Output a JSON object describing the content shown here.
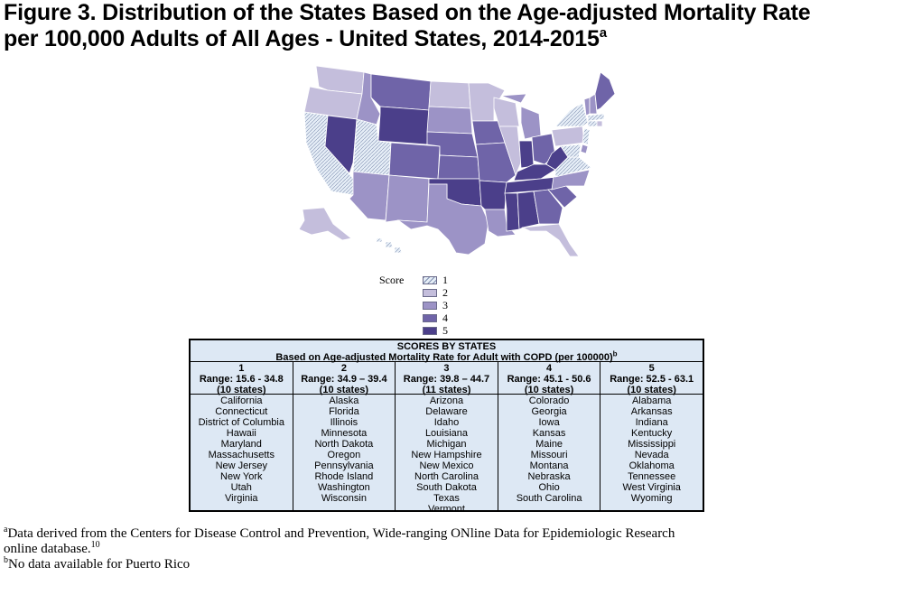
{
  "title": {
    "line1": "Figure 3.  Distribution of the States Based on the Age-adjusted Mortality Rate",
    "line2": "per 100,000 Adults of All Ages - United States, 2014-2015",
    "superscript": "a"
  },
  "colors": {
    "score1": "#e6eef7",
    "score2": "#c4bedc",
    "score3": "#9c93c6",
    "score4": "#6f64a8",
    "score5": "#4b3f8a",
    "table_bg": "#dde8f4",
    "border": "#000000"
  },
  "legend": {
    "title": "Score",
    "items": [
      {
        "label": "1",
        "color": "#e6eef7"
      },
      {
        "label": "2",
        "color": "#c4bedc"
      },
      {
        "label": "3",
        "color": "#9c93c6"
      },
      {
        "label": "4",
        "color": "#6f64a8"
      },
      {
        "label": "5",
        "color": "#4b3f8a"
      }
    ]
  },
  "table": {
    "heading1": "SCORES BY STATES",
    "heading2": "Based on Age-adjusted Mortality Rate for Adult with COPD (per 100000)",
    "heading2_sup": "b",
    "columns": [
      {
        "score": "1",
        "range": "Range: 15.6 - 34.8",
        "count": "(10 states)",
        "states": [
          "California",
          "Connecticut",
          "District of Columbia",
          "Hawaii",
          "Maryland",
          "Massachusetts",
          "New Jersey",
          "New York",
          "Utah",
          "Virginia"
        ]
      },
      {
        "score": "2",
        "range": "Range: 34.9 – 39.4",
        "count": "(10 states)",
        "states": [
          "Alaska",
          "Florida",
          "Illinois",
          "Minnesota",
          "North Dakota",
          "Oregon",
          "Pennsylvania",
          "Rhode Island",
          "Washington",
          "Wisconsin"
        ]
      },
      {
        "score": "3",
        "range": "Range: 39.8 – 44.7",
        "count": "(11 states)",
        "states": [
          "Arizona",
          "Delaware",
          "Idaho",
          "Louisiana",
          "Michigan",
          "New Hampshire",
          "New Mexico",
          "North Carolina",
          "South Dakota",
          "Texas",
          "Vermont"
        ]
      },
      {
        "score": "4",
        "range": "Range: 45.1 - 50.6",
        "count": "(10 states)",
        "states": [
          "Colorado",
          "Georgia",
          "Iowa",
          "Kansas",
          "Maine",
          "Missouri",
          "Montana",
          "Nebraska",
          "Ohio",
          "South Carolina"
        ]
      },
      {
        "score": "5",
        "range": "Range: 52.5 - 63.1",
        "count": "(10 states)",
        "states": [
          "Alabama",
          "Arkansas",
          "Indiana",
          "Kentucky",
          "Mississippi",
          "Nevada",
          "Oklahoma",
          "Tennessee",
          "West Virginia",
          "Wyoming"
        ]
      }
    ]
  },
  "footnotes": {
    "a_mark": "a",
    "a_line1": "Data derived from the Centers for Disease Control and Prevention, Wide-ranging ONline Data for Epidemiologic Research",
    "a_line2": "online database.",
    "a_ref": "10",
    "b_mark": "b",
    "b_text": "No data available for Puerto Rico"
  }
}
